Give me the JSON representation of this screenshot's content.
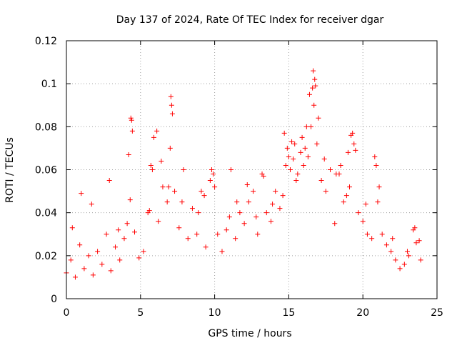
{
  "chart_data": {
    "type": "scatter",
    "title": "Day 137 of 2024, Rate Of TEC Index for receiver dgar",
    "xlabel": "GPS time / hours",
    "ylabel": "ROTI / TECUs",
    "xlim": [
      0,
      25
    ],
    "ylim": [
      0,
      0.12
    ],
    "xticks": [
      0,
      5,
      10,
      15,
      20,
      25
    ],
    "xtick_labels": [
      "0",
      "5",
      "10",
      "15",
      "20",
      "25"
    ],
    "yticks": [
      0,
      0.02,
      0.04,
      0.06,
      0.08,
      0.1,
      0.12
    ],
    "ytick_labels": [
      "0",
      "0.02",
      "0.04",
      "0.06",
      "0.08",
      "0.1",
      "0.12"
    ],
    "grid": true,
    "marker": "+",
    "color": "#ff0000",
    "series": [
      {
        "name": "ROTI",
        "x": [
          0.0,
          0.3,
          0.6,
          0.9,
          1.2,
          1.5,
          1.8,
          2.1,
          2.4,
          2.7,
          3.0,
          3.3,
          3.6,
          3.9,
          4.1,
          4.3,
          4.4,
          4.6,
          4.9,
          5.2,
          5.5,
          5.7,
          5.9,
          6.2,
          6.5,
          6.8,
          7.0,
          7.1,
          7.3,
          7.6,
          7.9,
          8.2,
          8.5,
          8.8,
          9.1,
          9.4,
          9.7,
          9.9,
          10.2,
          10.5,
          10.8,
          11.1,
          11.4,
          11.7,
          12.0,
          12.3,
          12.6,
          12.9,
          13.2,
          13.5,
          13.8,
          14.1,
          14.4,
          14.7,
          14.9,
          15.1,
          15.3,
          15.5,
          15.8,
          16.0,
          16.2,
          16.4,
          16.6,
          16.7,
          16.9,
          17.2,
          17.5,
          17.8,
          18.1,
          18.4,
          18.7,
          19.0,
          19.2,
          19.4,
          19.7,
          20.0,
          20.3,
          20.6,
          20.8,
          21.0,
          21.3,
          21.6,
          21.9,
          22.2,
          22.5,
          22.8,
          23.1,
          23.4,
          23.6,
          23.9,
          0.4,
          1.0,
          1.7,
          2.9,
          3.5,
          4.2,
          4.35,
          4.45,
          5.6,
          5.8,
          6.1,
          6.4,
          6.9,
          7.05,
          7.15,
          7.8,
          8.9,
          9.3,
          9.8,
          10.0,
          11.0,
          11.5,
          12.2,
          12.8,
          13.3,
          13.9,
          14.6,
          14.8,
          15.0,
          15.2,
          15.4,
          15.6,
          15.9,
          16.1,
          16.3,
          16.5,
          16.65,
          16.75,
          16.8,
          17.0,
          17.4,
          18.2,
          18.5,
          18.9,
          19.1,
          19.3,
          19.5,
          20.2,
          20.9,
          21.1,
          22.0,
          23.0,
          23.5,
          23.8
        ],
        "y": [
          0.012,
          0.018,
          0.01,
          0.025,
          0.014,
          0.02,
          0.011,
          0.022,
          0.016,
          0.03,
          0.013,
          0.024,
          0.018,
          0.028,
          0.035,
          0.046,
          0.083,
          0.031,
          0.019,
          0.022,
          0.04,
          0.062,
          0.075,
          0.036,
          0.052,
          0.045,
          0.07,
          0.09,
          0.05,
          0.033,
          0.06,
          0.028,
          0.042,
          0.03,
          0.05,
          0.024,
          0.055,
          0.058,
          0.03,
          0.022,
          0.032,
          0.06,
          0.028,
          0.04,
          0.035,
          0.045,
          0.05,
          0.03,
          0.058,
          0.04,
          0.036,
          0.05,
          0.042,
          0.077,
          0.07,
          0.06,
          0.065,
          0.055,
          0.068,
          0.062,
          0.08,
          0.095,
          0.098,
          0.09,
          0.072,
          0.055,
          0.05,
          0.06,
          0.035,
          0.058,
          0.045,
          0.068,
          0.076,
          0.072,
          0.04,
          0.036,
          0.03,
          0.028,
          0.066,
          0.045,
          0.03,
          0.025,
          0.022,
          0.018,
          0.014,
          0.016,
          0.02,
          0.032,
          0.026,
          0.018,
          0.033,
          0.049,
          0.044,
          0.055,
          0.032,
          0.067,
          0.084,
          0.078,
          0.041,
          0.06,
          0.078,
          0.064,
          0.052,
          0.094,
          0.086,
          0.045,
          0.04,
          0.048,
          0.06,
          0.052,
          0.038,
          0.045,
          0.053,
          0.038,
          0.057,
          0.044,
          0.048,
          0.062,
          0.066,
          0.073,
          0.072,
          0.058,
          0.075,
          0.07,
          0.066,
          0.08,
          0.106,
          0.102,
          0.099,
          0.084,
          0.065,
          0.058,
          0.062,
          0.048,
          0.052,
          0.077,
          0.069,
          0.044,
          0.062,
          0.052,
          0.028,
          0.022,
          0.033,
          0.027
        ]
      }
    ]
  }
}
